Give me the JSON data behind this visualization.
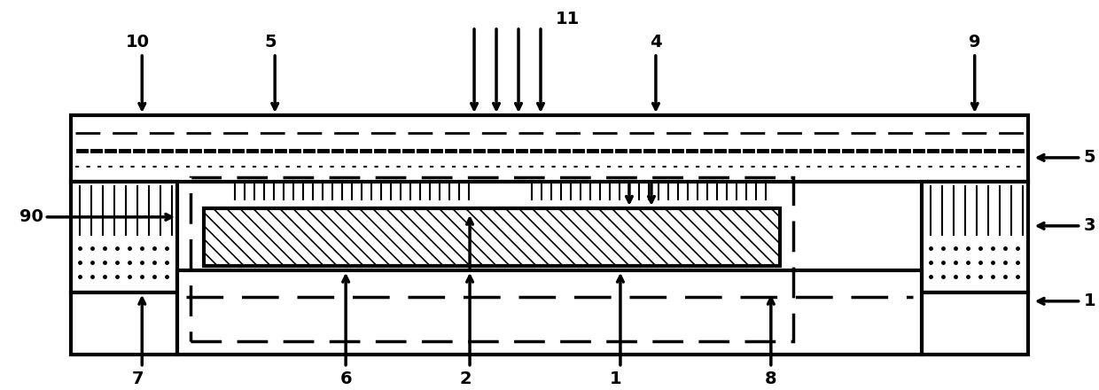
{
  "bg_color": "#ffffff",
  "line_color": "#000000",
  "lw": 2.5,
  "lw_thick": 3.0,
  "fig_width": 12.4,
  "fig_height": 4.4
}
